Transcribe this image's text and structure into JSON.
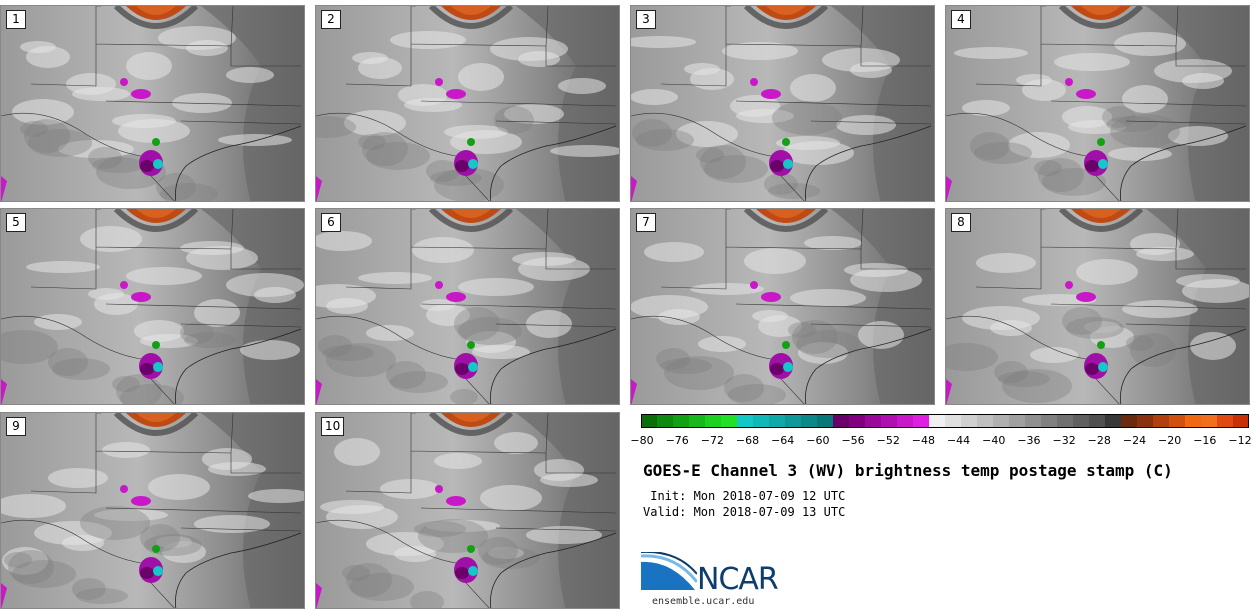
{
  "panels": [
    {
      "label": "1"
    },
    {
      "label": "2"
    },
    {
      "label": "3"
    },
    {
      "label": "4"
    },
    {
      "label": "5"
    },
    {
      "label": "6"
    },
    {
      "label": "7"
    },
    {
      "label": "8"
    },
    {
      "label": "9"
    },
    {
      "label": "10"
    }
  ],
  "colorbar": {
    "tick_labels": [
      "−80",
      "−76",
      "−72",
      "−68",
      "−64",
      "−60",
      "−56",
      "−52",
      "−48",
      "−44",
      "−40",
      "−36",
      "−32",
      "−28",
      "−24",
      "−20",
      "−16",
      "−12"
    ],
    "colors": [
      "#0a6e0a",
      "#0f8a10",
      "#12a015",
      "#18b81c",
      "#1ed020",
      "#22e028",
      "#15c8c8",
      "#12b8b8",
      "#10a8a8",
      "#0e9898",
      "#0c8888",
      "#0a7878",
      "#6a006a",
      "#800080",
      "#9a0a9a",
      "#b010b0",
      "#c818c8",
      "#e020e0",
      "#f0f0f0",
      "#e0e0e0",
      "#d0d0d0",
      "#c0c0c0",
      "#b0b0b0",
      "#a0a0a0",
      "#909090",
      "#808080",
      "#707070",
      "#606060",
      "#505050",
      "#383838",
      "#6a2a10",
      "#8a3210",
      "#b04010",
      "#d05010",
      "#f06810",
      "#f07020",
      "#e04a10",
      "#c83008"
    ]
  },
  "title": "GOES-E Channel 3 (WV) brightness temp postage stamp (C)",
  "init_line": " Init: Mon 2018-07-09 12 UTC",
  "valid_line": "Valid: Mon 2018-07-09 13 UTC",
  "logo_text": "NCAR",
  "logo_url": "ensemble.ucar.edu"
}
